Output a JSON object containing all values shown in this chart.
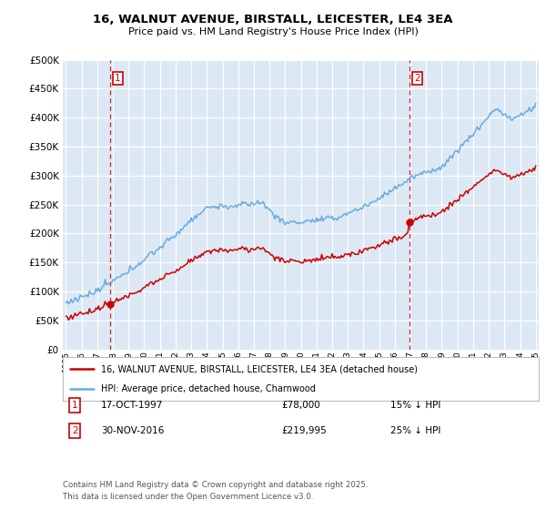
{
  "title_line1": "16, WALNUT AVENUE, BIRSTALL, LEICESTER, LE4 3EA",
  "title_line2": "Price paid vs. HM Land Registry's House Price Index (HPI)",
  "background_color": "#ffffff",
  "plot_bg_color": "#dce9f5",
  "grid_color": "#ffffff",
  "hpi_color": "#6aabdd",
  "price_color": "#cc0000",
  "legend_label1": "16, WALNUT AVENUE, BIRSTALL, LEICESTER, LE4 3EA (detached house)",
  "legend_label2": "HPI: Average price, detached house, Charnwood",
  "footer": "Contains HM Land Registry data © Crown copyright and database right 2025.\nThis data is licensed under the Open Government Licence v3.0.",
  "ylim": [
    0,
    500000
  ],
  "yticks": [
    0,
    50000,
    100000,
    150000,
    200000,
    250000,
    300000,
    350000,
    400000,
    450000,
    500000
  ],
  "x_start_year": 1995,
  "x_end_year": 2025,
  "sale1_year": 1997.8,
  "sale1_price": 78000,
  "sale2_year": 2016.92,
  "sale2_price": 219995,
  "annotation1_date": "17-OCT-1997",
  "annotation1_price": "£78,000",
  "annotation1_hpi": "15% ↓ HPI",
  "annotation2_date": "30-NOV-2016",
  "annotation2_price": "£219,995",
  "annotation2_hpi": "25% ↓ HPI"
}
